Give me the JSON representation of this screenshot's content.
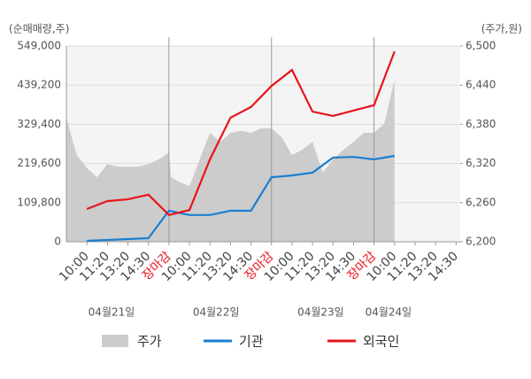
{
  "chart_data": {
    "type": "line",
    "y_axis_label": "(순매매량,주)",
    "y2_axis_label": "(주가,원)",
    "categories": [
      "10:00",
      "11:20",
      "13:20",
      "14:30",
      "장마감",
      "10:00",
      "11:20",
      "13:20",
      "14:30",
      "장마감",
      "10:00",
      "11:20",
      "13:20",
      "14:30",
      "장마감",
      "10:00",
      "11:20",
      "13:20",
      "14:30"
    ],
    "dates": [
      "04월21일",
      "04월22일",
      "04월23일",
      "04월24일"
    ],
    "xlim": [
      -1,
      18.2
    ],
    "ylim": [
      0,
      549000
    ],
    "yticks": [
      0,
      {
        "value": 109800,
        "label": "109,800"
      },
      {
        "value": 219600,
        "label": "219,600"
      },
      {
        "value": 329400,
        "label": "329,400"
      },
      {
        "value": 439200,
        "label": "439,200"
      },
      {
        "value": 549000,
        "label": "549,000"
      }
    ],
    "y2lim": [
      6200,
      6500
    ],
    "y2ticks": [
      {
        "value": 6200,
        "label": "6,200"
      },
      {
        "value": 6260,
        "label": "6,260"
      },
      {
        "value": 6320,
        "label": "6,320"
      },
      {
        "value": 6380,
        "label": "6,380"
      },
      {
        "value": 6440,
        "label": "6,440"
      },
      {
        "value": 6500,
        "label": "6,500"
      }
    ],
    "grid": true,
    "series": [
      {
        "name": "주가",
        "type": "area",
        "axis": "y2",
        "color": "#cccccc",
        "x": [
          -1,
          -0.5,
          0,
          0.5,
          1,
          1.5,
          2,
          2.5,
          3,
          3.5,
          4,
          4.1,
          4.5,
          5,
          5.5,
          6,
          6.5,
          7,
          7.5,
          8,
          8.5,
          9,
          9.5,
          10,
          10.5,
          11,
          11.5,
          12,
          12.5,
          13,
          13.5,
          14,
          14.5,
          15
        ],
        "values": [
          6390,
          6333,
          6313,
          6299,
          6319,
          6315,
          6315,
          6315,
          6319,
          6326,
          6337,
          6299,
          6292,
          6285,
          6326,
          6367,
          6353,
          6367,
          6370,
          6367,
          6374,
          6374,
          6360,
          6333,
          6341,
          6353,
          6306,
          6326,
          6341,
          6353,
          6367,
          6367,
          6381,
          6448
        ]
      },
      {
        "name": "기관",
        "type": "line",
        "color": "#1a7fd0",
        "values": [
          2500,
          5000,
          7500,
          10000,
          87000,
          75000,
          75000,
          87000,
          87000,
          181000,
          186000,
          194000,
          236000,
          238000,
          231000,
          241000,
          null,
          null,
          null
        ]
      },
      {
        "name": "외국인",
        "type": "line",
        "color": "#e8141c",
        "values": [
          92000,
          114000,
          119000,
          132000,
          75000,
          89000,
          231000,
          348000,
          378000,
          437000,
          482000,
          365000,
          353000,
          368000,
          383000,
          534000,
          null,
          null,
          null
        ]
      }
    ]
  }
}
